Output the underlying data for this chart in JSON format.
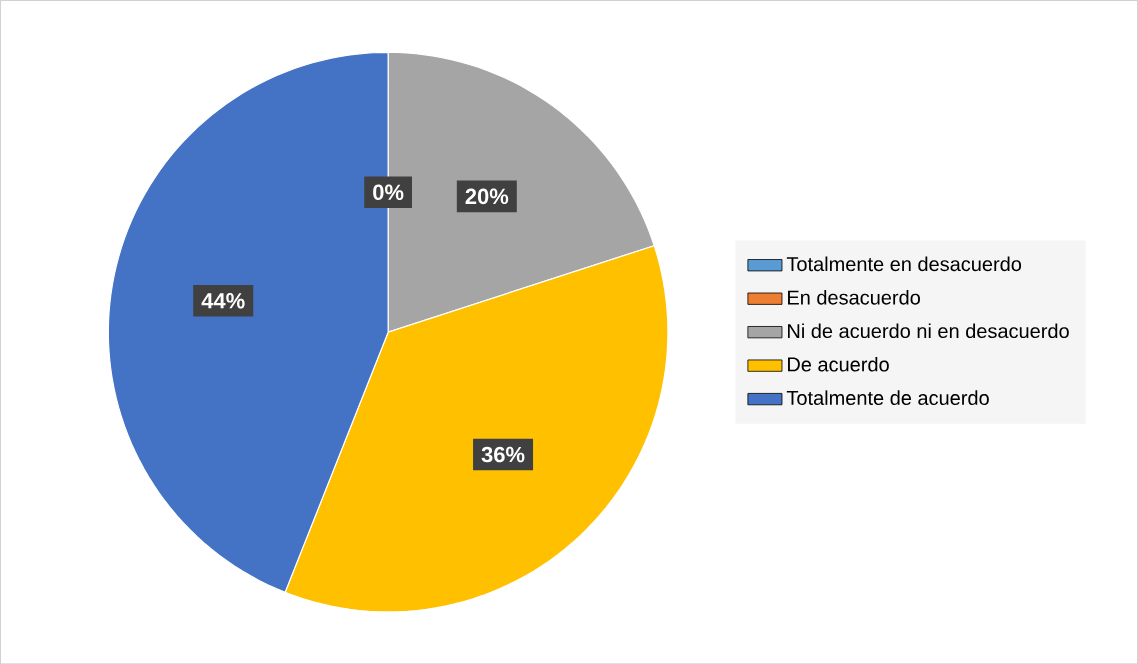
{
  "chart_data": {
    "type": "pie",
    "categories": [
      "Totalmente en desacuerdo",
      "En desacuerdo",
      "Ni de acuerdo ni en desacuerdo",
      "De acuerdo",
      "Totalmente de acuerdo"
    ],
    "values": [
      0,
      0,
      20,
      36,
      44
    ],
    "colors": [
      "#5b9bd5",
      "#ed7d31",
      "#a5a5a5",
      "#ffc000",
      "#4472c4"
    ],
    "value_labels": [
      "0%",
      null,
      "20%",
      "36%",
      "44%"
    ],
    "legend": "right"
  }
}
